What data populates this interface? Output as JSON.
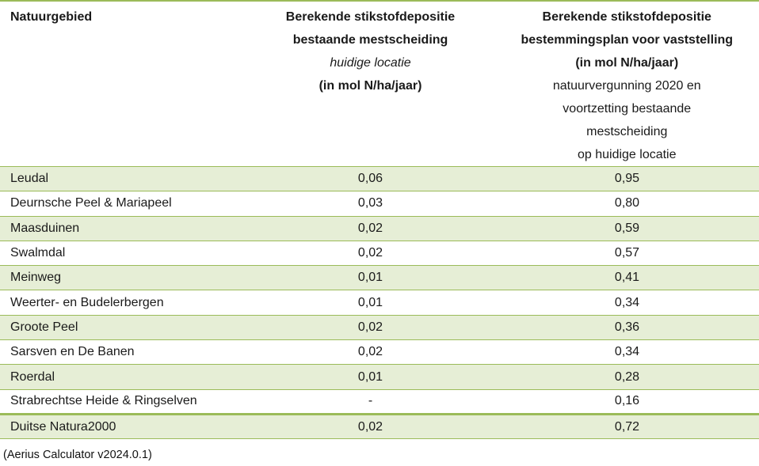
{
  "table": {
    "header": {
      "col1": "Natuurgebied",
      "col2_lines": [
        "Berekende stikstofdepositie",
        "bestaande mestscheiding",
        "huidige locatie",
        "(in mol N/ha/jaar)"
      ],
      "col3_lines": [
        "Berekende stikstofdepositie",
        "bestemmingsplan voor vaststelling",
        "(in mol N/ha/jaar)",
        "natuurvergunning 2020 en",
        "voortzetting bestaande",
        "mestscheiding",
        "op huidige locatie"
      ]
    },
    "rows": [
      {
        "area": "Leudal",
        "existing": "0,06",
        "plan": "0,95"
      },
      {
        "area": "Deurnsche Peel & Mariapeel",
        "existing": "0,03",
        "plan": "0,80"
      },
      {
        "area": "Maasduinen",
        "existing": "0,02",
        "plan": "0,59"
      },
      {
        "area": "Swalmdal",
        "existing": "0,02",
        "plan": "0,57"
      },
      {
        "area": "Meinweg",
        "existing": "0,01",
        "plan": "0,41"
      },
      {
        "area": "Weerter- en Budelerbergen",
        "existing": "0,01",
        "plan": "0,34"
      },
      {
        "area": "Groote Peel",
        "existing": "0,02",
        "plan": "0,36"
      },
      {
        "area": "Sarsven en De Banen",
        "existing": "0,02",
        "plan": "0,34"
      },
      {
        "area": "Roerdal",
        "existing": "0,01",
        "plan": "0,28"
      },
      {
        "area": "Strabrechtse Heide & Ringselven",
        "existing": "-",
        "plan": "0,16"
      },
      {
        "area": "Duitse Natura2000",
        "existing": "0,02",
        "plan": "0,72"
      }
    ],
    "colors": {
      "border_green": "#9bbb59",
      "row_shade_green": "#e6eed6",
      "text": "#1a1a1a"
    }
  },
  "footer": {
    "caption": "(Aerius Calculator v2024.0.1)"
  }
}
